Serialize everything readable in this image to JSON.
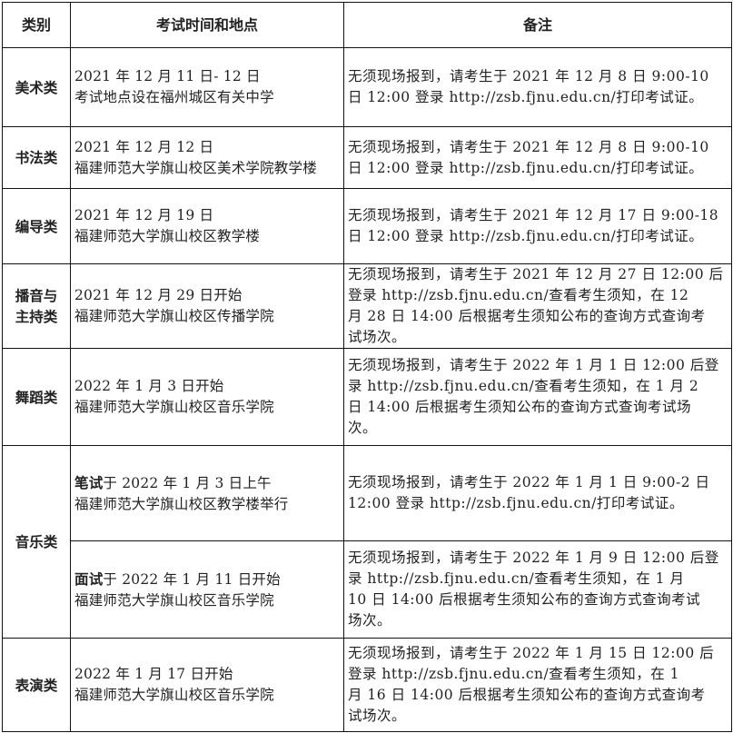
{
  "header": {
    "category": "类别",
    "time_place": "考试时间和地点",
    "notes": "备注"
  },
  "rows": [
    {
      "category": [
        "美术类"
      ],
      "info": [
        {
          "prefix": "",
          "text": "2021 年 12 月 11 日- 12 日"
        },
        {
          "prefix": "",
          "text": "考试地点设在福州城区有关中学"
        }
      ],
      "notes": [
        "无须现场报到，请考生于 2021 年 12 月 8 日 9:00-10",
        "日 12:00 登录 http://zsb.fjnu.edu.cn/打印考试证。"
      ]
    },
    {
      "category": [
        "书法类"
      ],
      "info": [
        {
          "prefix": "",
          "text": "2021 年 12 月 12 日"
        },
        {
          "prefix": "",
          "text": "福建师范大学旗山校区美术学院教学楼"
        }
      ],
      "notes": [
        "无须现场报到，请考生于 2021 年 12 月 8 日 9:00-10",
        "日 12:00 登录 http://zsb.fjnu.edu.cn/打印考试证。"
      ]
    },
    {
      "category": [
        "编导类"
      ],
      "info": [
        {
          "prefix": "",
          "text": "2021 年 12 月 19 日"
        },
        {
          "prefix": "",
          "text": "福建师范大学旗山校区教学楼"
        }
      ],
      "notes": [
        "无须现场报到，请考生于 2021 年 12 月 17 日 9:00-18",
        "日 12:00 登录 http://zsb.fjnu.edu.cn/打印考试证。"
      ]
    },
    {
      "category": [
        "播音与",
        "主持类"
      ],
      "info": [
        {
          "prefix": "",
          "text": "2021 年 12 月 29 日开始"
        },
        {
          "prefix": "",
          "text": "福建师范大学旗山校区传播学院"
        }
      ],
      "notes": [
        "无须现场报到，请考生于 2021 年 12 月 27 日 12:00 后",
        "登录 http://zsb.fjnu.edu.cn/查看考生须知，在 12",
        "月 28 日 14:00 后根据考生须知公布的查询方式查询考",
        "试场次。"
      ]
    },
    {
      "category": [
        "舞蹈类"
      ],
      "info": [
        {
          "prefix": "",
          "text": "2022 年 1 月 3 日开始"
        },
        {
          "prefix": "",
          "text": "福建师范大学旗山校区音乐学院"
        }
      ],
      "notes": [
        "无须现场报到，请考生于 2022 年 1 月 1 日 12:00 后登",
        "录 http://zsb.fjnu.edu.cn/查看考生须知，在 1 月 2",
        "日 14:00 后根据考生须知公布的查询方式查询考试场",
        "次。"
      ]
    },
    {
      "category": [
        "音乐类"
      ],
      "rowspan": 2,
      "info": [
        {
          "prefix": "笔试",
          "text": "于 2022 年 1 月 3 日上午"
        },
        {
          "prefix": "",
          "text": "福建师范大学旗山校区教学楼举行"
        }
      ],
      "notes": [
        "无须现场报到，请考生于 2022 年 1 月 1  日 9:00-2 日",
        "12:00 登录 http://zsb.fjnu.edu.cn/打印考试证。"
      ]
    },
    {
      "category": null,
      "info": [
        {
          "prefix": "面试",
          "text": "于 2022 年 1 月 11 日开始"
        },
        {
          "prefix": "",
          "text": "福建师范大学旗山校区音乐学院"
        }
      ],
      "notes": [
        "无须现场报到，请考生于 2022 年 1 月 9 日 12:00 后登",
        "录 http://zsb.fjnu.edu.cn/查看考生须知，在 1 月",
        "10 日 14:00 后根据考生须知公布的查询方式查询考试",
        "场次。"
      ]
    },
    {
      "category": [
        "表演类"
      ],
      "info": [
        {
          "prefix": "",
          "text": "2022 年 1 月 17 日开始"
        },
        {
          "prefix": "",
          "text": "福建师范大学旗山校区音乐学院"
        }
      ],
      "notes": [
        "无须现场报到，请考生于 2022 年 1 月 15 日 12:00 后",
        "登录 http://zsb.fjnu.edu.cn/查看考生须知，在 1",
        "月 16 日 14:00 后根据考生须知公布的查询方式查询考",
        "试场次。"
      ]
    }
  ]
}
